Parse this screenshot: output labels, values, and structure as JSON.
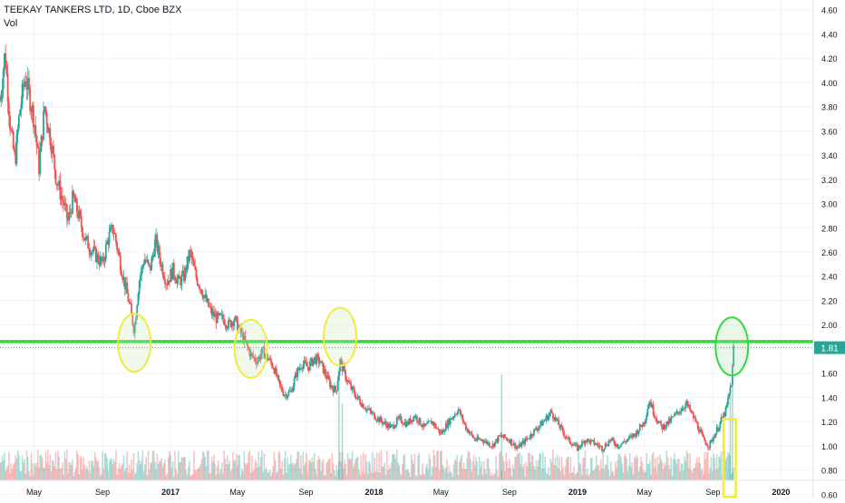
{
  "chart_data": {
    "type": "candlestick",
    "title": "TEEKAY TANKERS LTD, 1D, Cboe BZX",
    "volume_label": "Vol",
    "current_price_label": "1.81",
    "y_axis": {
      "ticks": [
        "4.60",
        "4.40",
        "4.20",
        "4.00",
        "3.80",
        "3.60",
        "3.40",
        "3.20",
        "3.00",
        "2.80",
        "2.60",
        "2.40",
        "2.20",
        "2.00",
        "1.80",
        "1.60",
        "1.40",
        "1.20",
        "1.00",
        "0.80",
        "0.60"
      ],
      "range": [
        0.55,
        4.68
      ]
    },
    "x_axis": {
      "ticks": [
        "May",
        "Sep",
        "2017",
        "May",
        "Sep",
        "2018",
        "May",
        "Sep",
        "2019",
        "May",
        "Sep",
        "2020"
      ],
      "range": [
        "2016-03-01",
        "2020-02-28"
      ]
    },
    "price_series": {
      "name": "",
      "points": [
        [
          "2016-03-01",
          3.85
        ],
        [
          "2016-03-10",
          4.25
        ],
        [
          "2016-03-20",
          3.6
        ],
        [
          "2016-03-28",
          3.35
        ],
        [
          "2016-04-05",
          3.75
        ],
        [
          "2016-04-15",
          4.05
        ],
        [
          "2016-04-22",
          3.9
        ],
        [
          "2016-05-01",
          3.7
        ],
        [
          "2016-05-10",
          3.3
        ],
        [
          "2016-05-20",
          3.8
        ],
        [
          "2016-06-01",
          3.5
        ],
        [
          "2016-06-10",
          3.2
        ],
        [
          "2016-06-20",
          3.05
        ],
        [
          "2016-07-01",
          2.85
        ],
        [
          "2016-07-10",
          3.05
        ],
        [
          "2016-07-20",
          2.9
        ],
        [
          "2016-08-01",
          2.7
        ],
        [
          "2016-08-15",
          2.6
        ],
        [
          "2016-09-01",
          2.5
        ],
        [
          "2016-09-10",
          2.7
        ],
        [
          "2016-09-20",
          2.8
        ],
        [
          "2016-10-01",
          2.55
        ],
        [
          "2016-10-10",
          2.35
        ],
        [
          "2016-10-20",
          2.15
        ],
        [
          "2016-10-28",
          1.95
        ],
        [
          "2016-11-05",
          2.35
        ],
        [
          "2016-11-15",
          2.55
        ],
        [
          "2016-11-25",
          2.45
        ],
        [
          "2016-12-05",
          2.7
        ],
        [
          "2016-12-15",
          2.5
        ],
        [
          "2016-12-25",
          2.35
        ],
        [
          "2017-01-05",
          2.45
        ],
        [
          "2017-01-15",
          2.35
        ],
        [
          "2017-01-25",
          2.4
        ],
        [
          "2017-02-05",
          2.6
        ],
        [
          "2017-02-15",
          2.4
        ],
        [
          "2017-02-25",
          2.3
        ],
        [
          "2017-03-05",
          2.2
        ],
        [
          "2017-03-15",
          2.1
        ],
        [
          "2017-03-25",
          2.05
        ],
        [
          "2017-04-05",
          2.05
        ],
        [
          "2017-04-15",
          2.0
        ],
        [
          "2017-04-25",
          2.05
        ],
        [
          "2017-05-05",
          1.95
        ],
        [
          "2017-05-15",
          1.85
        ],
        [
          "2017-05-25",
          1.75
        ],
        [
          "2017-06-05",
          1.7
        ],
        [
          "2017-06-15",
          1.78
        ],
        [
          "2017-06-25",
          1.72
        ],
        [
          "2017-07-05",
          1.65
        ],
        [
          "2017-07-15",
          1.5
        ],
        [
          "2017-07-25",
          1.42
        ],
        [
          "2017-08-05",
          1.45
        ],
        [
          "2017-08-15",
          1.6
        ],
        [
          "2017-08-25",
          1.68
        ],
        [
          "2017-09-05",
          1.65
        ],
        [
          "2017-09-15",
          1.72
        ],
        [
          "2017-09-25",
          1.7
        ],
        [
          "2017-10-05",
          1.6
        ],
        [
          "2017-10-15",
          1.5
        ],
        [
          "2017-10-25",
          1.45
        ],
        [
          "2017-11-01",
          1.7
        ],
        [
          "2017-11-10",
          1.58
        ],
        [
          "2017-11-20",
          1.48
        ],
        [
          "2017-12-01",
          1.4
        ],
        [
          "2017-12-10",
          1.35
        ],
        [
          "2017-12-20",
          1.3
        ],
        [
          "2018-01-01",
          1.25
        ],
        [
          "2018-01-15",
          1.2
        ],
        [
          "2018-02-01",
          1.15
        ],
        [
          "2018-02-15",
          1.22
        ],
        [
          "2018-03-01",
          1.18
        ],
        [
          "2018-03-15",
          1.25
        ],
        [
          "2018-04-01",
          1.15
        ],
        [
          "2018-04-15",
          1.2
        ],
        [
          "2018-05-01",
          1.1
        ],
        [
          "2018-05-15",
          1.2
        ],
        [
          "2018-06-01",
          1.3
        ],
        [
          "2018-06-15",
          1.15
        ],
        [
          "2018-07-01",
          1.05
        ],
        [
          "2018-07-15",
          1.05
        ],
        [
          "2018-08-01",
          1.0
        ],
        [
          "2018-08-15",
          1.08
        ],
        [
          "2018-09-01",
          1.05
        ],
        [
          "2018-09-15",
          0.98
        ],
        [
          "2018-10-01",
          1.05
        ],
        [
          "2018-10-15",
          1.12
        ],
        [
          "2018-11-01",
          1.2
        ],
        [
          "2018-11-15",
          1.28
        ],
        [
          "2018-12-01",
          1.15
        ],
        [
          "2018-12-15",
          1.05
        ],
        [
          "2019-01-01",
          0.98
        ],
        [
          "2019-01-15",
          1.05
        ],
        [
          "2019-02-01",
          1.02
        ],
        [
          "2019-02-15",
          0.98
        ],
        [
          "2019-03-01",
          1.05
        ],
        [
          "2019-03-15",
          1.0
        ],
        [
          "2019-04-01",
          1.05
        ],
        [
          "2019-04-15",
          1.1
        ],
        [
          "2019-05-01",
          1.2
        ],
        [
          "2019-05-10",
          1.38
        ],
        [
          "2019-05-20",
          1.25
        ],
        [
          "2019-06-01",
          1.15
        ],
        [
          "2019-06-15",
          1.2
        ],
        [
          "2019-07-01",
          1.28
        ],
        [
          "2019-07-15",
          1.35
        ],
        [
          "2019-08-01",
          1.2
        ],
        [
          "2019-08-15",
          1.05
        ],
        [
          "2019-08-25",
          1.0
        ],
        [
          "2019-09-05",
          1.1
        ],
        [
          "2019-09-15",
          1.2
        ],
        [
          "2019-09-25",
          1.3
        ],
        [
          "2019-10-01",
          1.45
        ],
        [
          "2019-10-05",
          1.55
        ],
        [
          "2019-10-08",
          1.81
        ]
      ]
    },
    "volume_series": {
      "tall_bars": [
        [
          "2017-10-30",
          0.95
        ],
        [
          "2017-11-05",
          0.65
        ],
        [
          "2018-08-18",
          0.9
        ],
        [
          "2019-10-02",
          0.8
        ],
        [
          "2019-10-06",
          0.95
        ]
      ]
    },
    "annotations": {
      "horizontal_line_value": 1.86,
      "dotted_line_value": 1.81,
      "circles": [
        {
          "date": "2016-10-28",
          "center_value": 1.85,
          "color": "#f2eb3c"
        },
        {
          "date": "2017-05-25",
          "center_value": 1.8,
          "color": "#f2eb3c"
        },
        {
          "date": "2017-11-01",
          "center_value": 1.9,
          "color": "#f2eb3c"
        },
        {
          "date": "2019-10-05",
          "center_value": 1.82,
          "color": "#2ddc3a"
        }
      ],
      "box": {
        "date_start": "2019-09-20",
        "date_end": "2019-10-12",
        "value_top": 1.22,
        "value_bottom": 0.58,
        "color": "#f2eb3c"
      }
    },
    "colors": {
      "up": "#26a69a",
      "down": "#ef5350",
      "line": "#2ddc3a",
      "price_tag_bg": "#26a69a"
    },
    "grid": true
  }
}
